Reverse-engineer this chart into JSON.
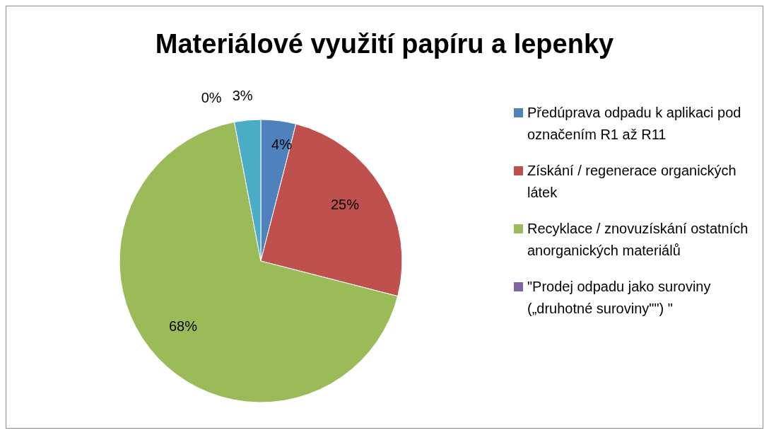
{
  "chart_data": {
    "type": "pie",
    "title": "Materiálové využití papíru a lepenky",
    "categories": [
      "Předúprava odpadu k aplikaci pod označením R1 až R11",
      "Získání / regenerace organických látek",
      "Recyklace / znovuzískání ostatních anorganických materiálů",
      "\"Prodej odpadu jako suroviny („druhotné suroviny\"\") \"",
      null
    ],
    "values": [
      4,
      25,
      68,
      0,
      3
    ],
    "colors": [
      "#4f81bd",
      "#c0504d",
      "#9bbb59",
      "#8064a2",
      "#4bacc6"
    ],
    "value_labels": [
      "4%",
      "25%",
      "68%",
      "0%",
      "3%"
    ],
    "legend": "right"
  }
}
